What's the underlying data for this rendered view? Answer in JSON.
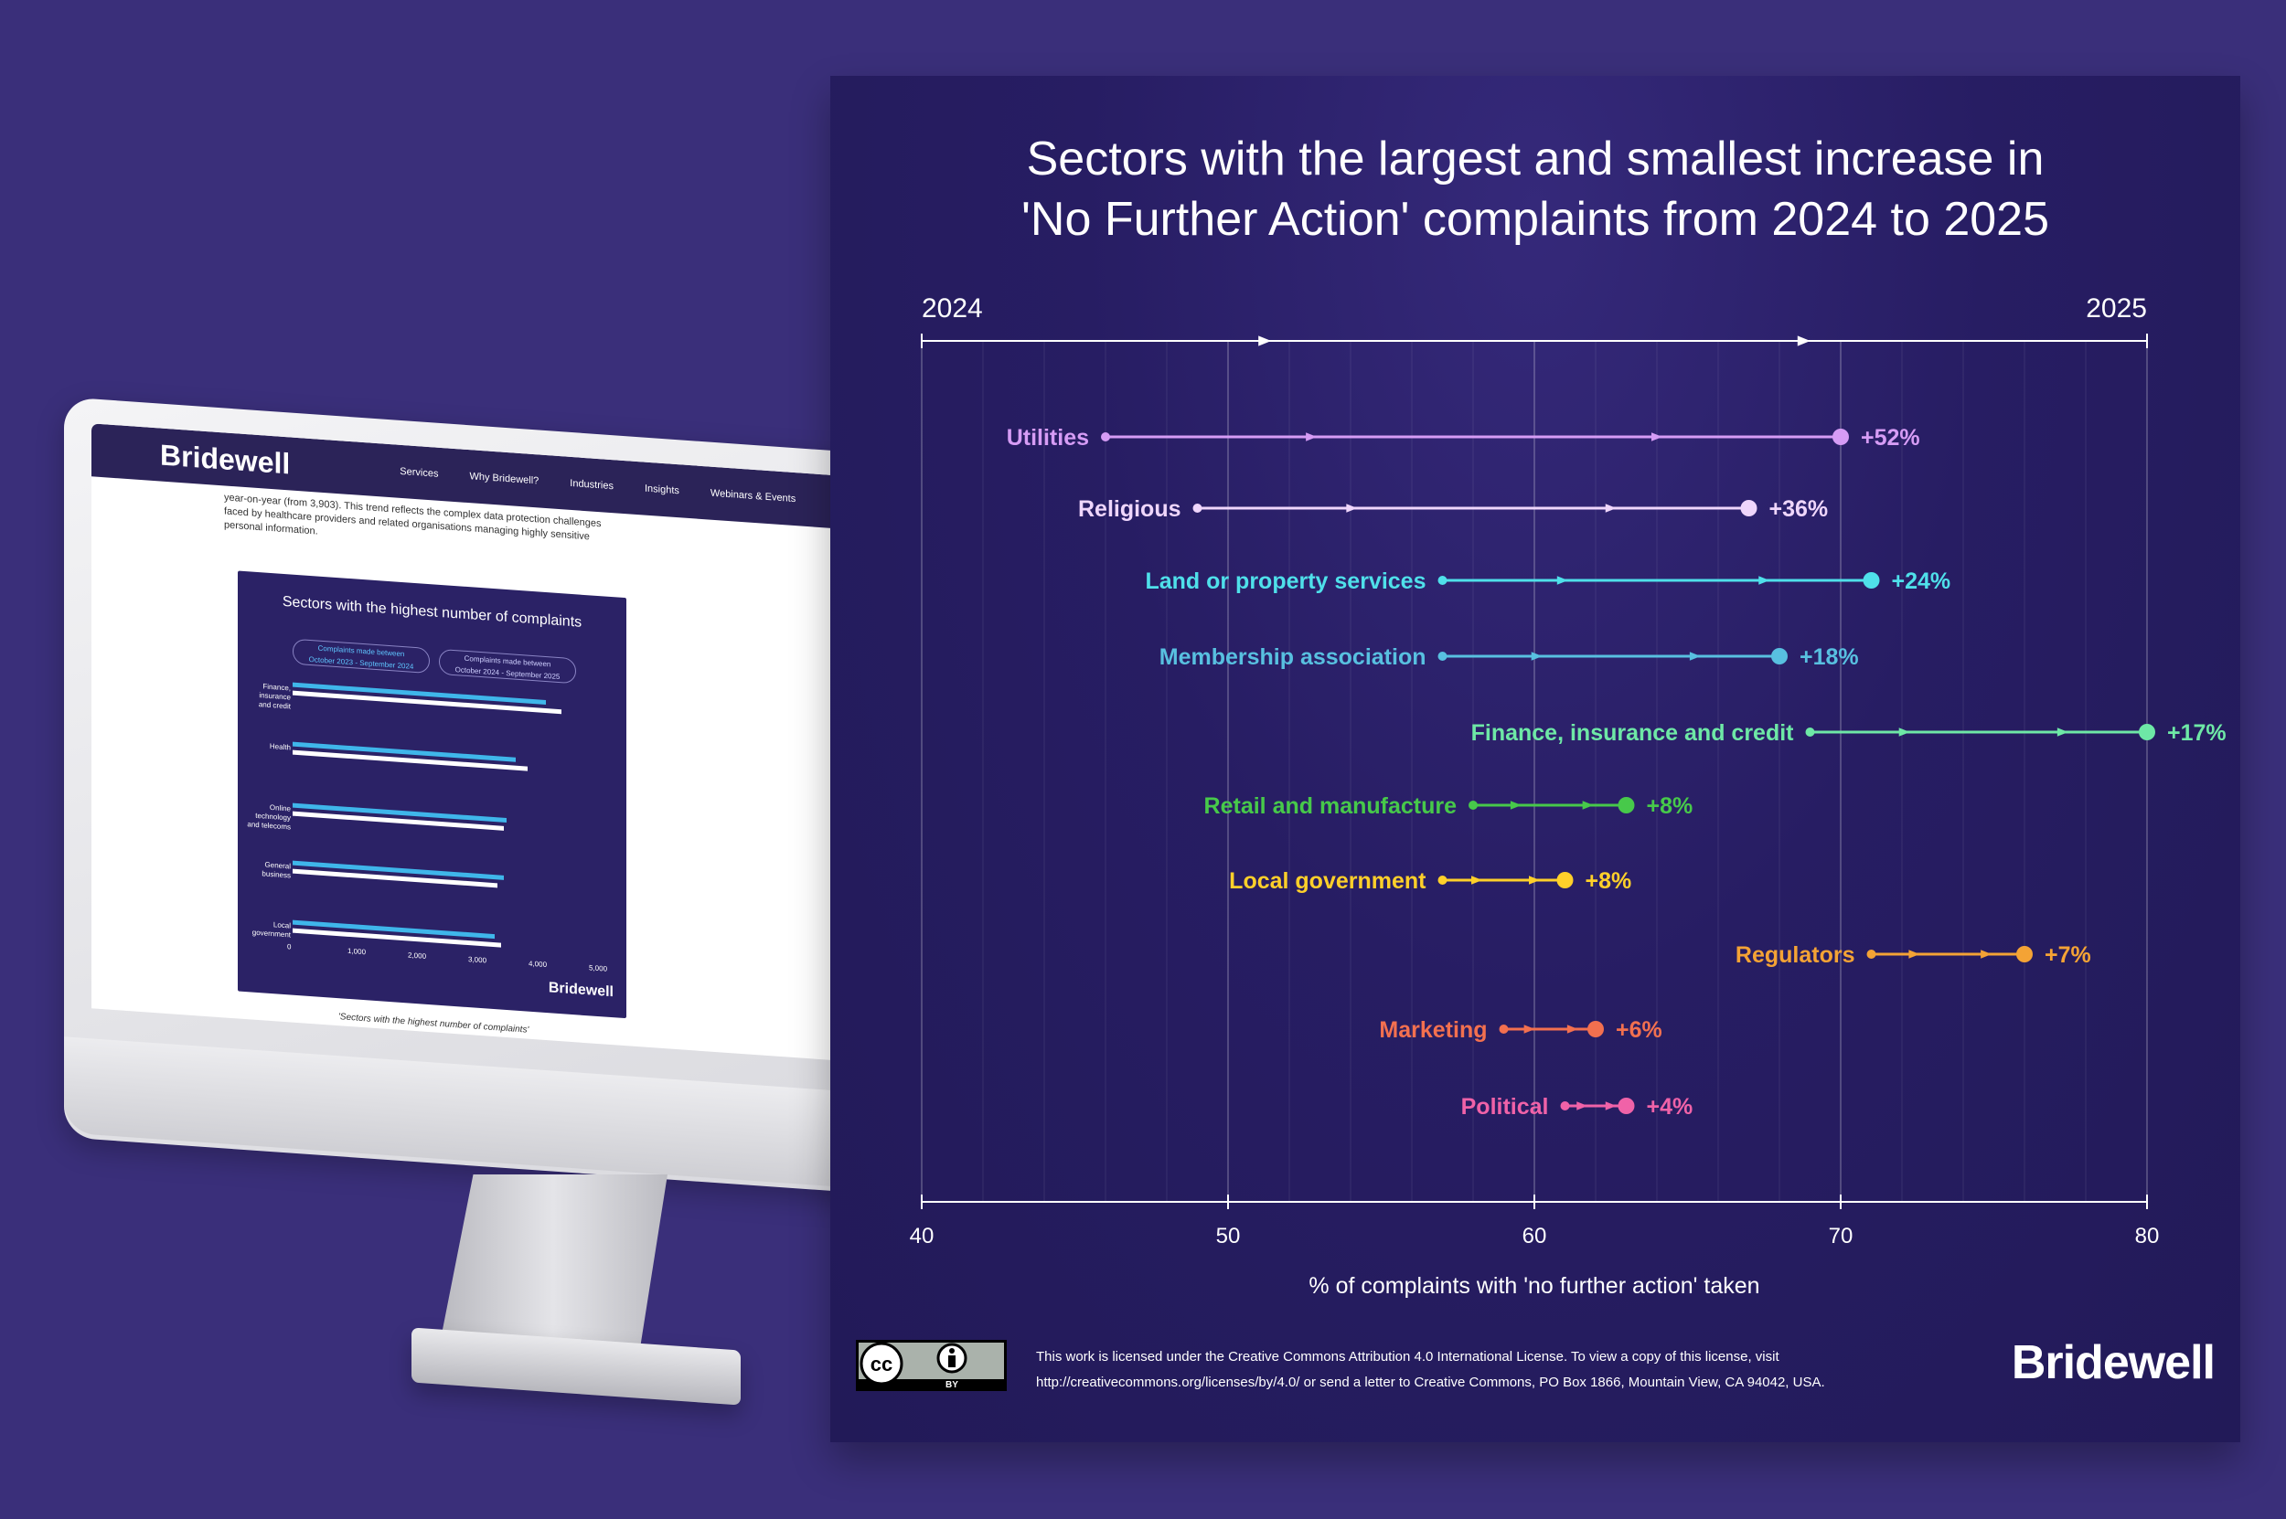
{
  "colors": {
    "background": "#3a2f7a",
    "card": "#241b5e",
    "axis": "#ffffff"
  },
  "monitor": {
    "site": {
      "logo": "Bridewell",
      "nav": [
        "Services",
        "Why Bridewell?",
        "Industries",
        "Insights",
        "Webinars & Events"
      ],
      "paragraph": "year-on-year (from 3,903). This trend reflects the complex data protection challenges faced by healthcare providers and related organisations managing highly sensitive personal information."
    },
    "mini_chart": {
      "title": "Sectors with the highest number of complaints",
      "legend_2024": "Complaints made between\nOctober 2023 - September 2024",
      "legend_2025": "Complaints made between\nOctober 2024 - September 2025",
      "categories": [
        "Finance, insurance and credit",
        "Health",
        "Online technology and telecoms",
        "General business",
        "Local government"
      ],
      "values_2024": [
        4200,
        3700,
        3550,
        3500,
        3350
      ],
      "values_2025": [
        4450,
        3900,
        3500,
        3400,
        3450
      ],
      "ticks": [
        "0",
        "1,000",
        "2,000",
        "3,000",
        "4,000",
        "5,000"
      ],
      "logo": "Bridewell",
      "caption": "'Sectors with the highest number of complaints'"
    }
  },
  "card": {
    "title": "Sectors with the largest and smallest increase in\n'No Further Action' complaints from 2024 to 2025",
    "license_text": "This work is licensed under the Creative Commons Attribution 4.0 International License. To view a copy of this license, visit\nhttp://creativecommons.org/licenses/by/4.0/ or send a letter to Creative Commons, PO Box 1866, Mountain View, CA 94042, USA.",
    "logo": "Bridewell",
    "license_badge": {
      "cc": "cc",
      "by": "BY"
    }
  },
  "chart_data": {
    "type": "dumbbell",
    "title": "Sectors with the largest and smallest increase in 'No Further Action' complaints from 2024 to 2025",
    "xlabel": "% of complaints with 'no further action' taken",
    "xlim": [
      40,
      80
    ],
    "xticks": [
      40,
      50,
      60,
      70,
      80
    ],
    "year_start_label": "2024",
    "year_end_label": "2025",
    "series": [
      {
        "name": "Utilities",
        "start": 46,
        "end": 70,
        "change": "+52%",
        "color": "#d69cf5"
      },
      {
        "name": "Religious",
        "start": 49,
        "end": 67,
        "change": "+36%",
        "color": "#efd6fb"
      },
      {
        "name": "Land or property services",
        "start": 57,
        "end": 71,
        "change": "+24%",
        "color": "#4fe0ea"
      },
      {
        "name": "Membership association",
        "start": 57,
        "end": 68,
        "change": "+18%",
        "color": "#58c0e0"
      },
      {
        "name": "Finance, insurance and credit",
        "start": 69,
        "end": 80,
        "change": "+17%",
        "color": "#6ee8a6"
      },
      {
        "name": "Retail and manufacture",
        "start": 58,
        "end": 63,
        "change": "+8%",
        "color": "#47c94a"
      },
      {
        "name": "Local government",
        "start": 57,
        "end": 61,
        "change": "+8%",
        "color": "#ffd02a"
      },
      {
        "name": "Regulators",
        "start": 71,
        "end": 76,
        "change": "+7%",
        "color": "#f4a335"
      },
      {
        "name": "Marketing",
        "start": 59,
        "end": 62,
        "change": "+6%",
        "color": "#f3704f"
      },
      {
        "name": "Political",
        "start": 61,
        "end": 63,
        "change": "+4%",
        "color": "#f062a8"
      }
    ]
  }
}
